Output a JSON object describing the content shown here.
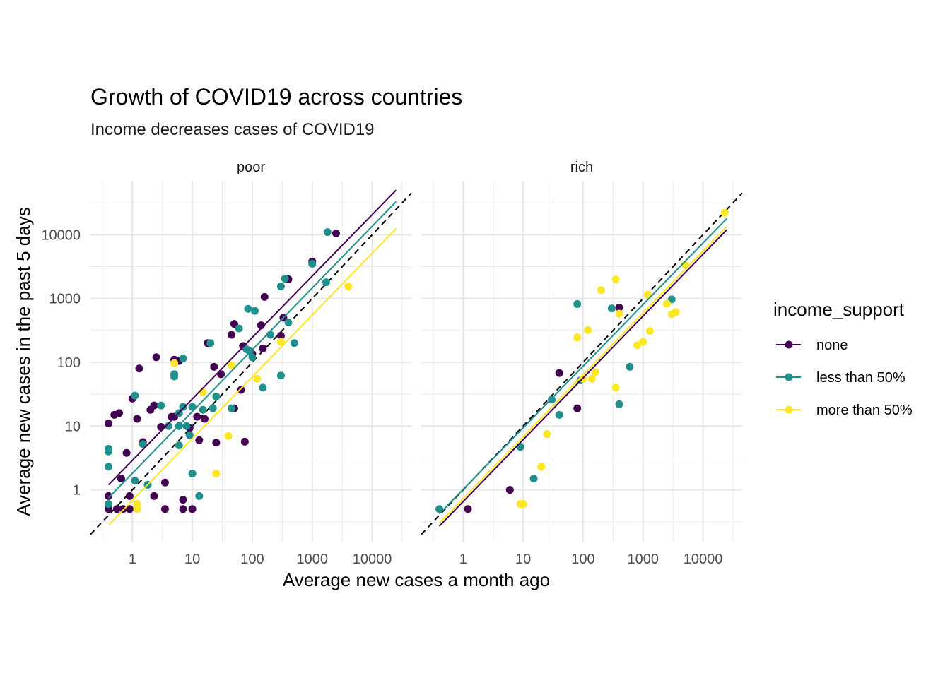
{
  "chart_data": {
    "type": "scatter",
    "title": "Growth of COVID19 across countries",
    "subtitle": "Income decreases cases of COVID19",
    "xlabel": "Average new cases a month ago",
    "ylabel": "Average new cases in the past 5 days",
    "x_scale": "log10",
    "y_scale": "log10",
    "xlim": [
      0.2,
      45000
    ],
    "ylim": [
      0.15,
      70000
    ],
    "x_ticks": [
      1,
      10,
      100,
      1000,
      10000
    ],
    "x_tick_labels": [
      "1",
      "10",
      "100",
      "1000",
      "10000"
    ],
    "y_ticks": [
      1,
      10,
      100,
      1000,
      10000
    ],
    "y_tick_labels": [
      "1",
      "10",
      "100",
      "1000",
      "10000"
    ],
    "grid": true,
    "reference_line": "y = x (dashed)",
    "legend": {
      "title": "income_support",
      "position": "right",
      "entries": [
        {
          "name": "none",
          "color": "#440154"
        },
        {
          "name": "less than 50%",
          "color": "#21908C"
        },
        {
          "name": "more than 50%",
          "color": "#FDE725"
        }
      ]
    },
    "panels": [
      {
        "label": "poor",
        "fit_lines": [
          {
            "series": "none",
            "x": [
              0.4,
              25000
            ],
            "y": [
              1.2,
              50000
            ]
          },
          {
            "series": "less than 50%",
            "x": [
              0.4,
              25000
            ],
            "y": [
              0.75,
              33000
            ]
          },
          {
            "series": "more than 50%",
            "x": [
              0.4,
              25000
            ],
            "y": [
              0.28,
              12500
            ]
          }
        ],
        "series": [
          {
            "name": "none",
            "points": [
              [
                0.4,
                0.5
              ],
              [
                0.4,
                0.8
              ],
              [
                0.4,
                11
              ],
              [
                0.5,
                15
              ],
              [
                0.6,
                16
              ],
              [
                0.65,
                1.5
              ],
              [
                0.55,
                0.5
              ],
              [
                0.7,
                0.5
              ],
              [
                0.8,
                3.8
              ],
              [
                0.9,
                0.5
              ],
              [
                0.9,
                0.8
              ],
              [
                1,
                27
              ],
              [
                1.2,
                13
              ],
              [
                1.3,
                80
              ],
              [
                1.5,
                5.6
              ],
              [
                2,
                18
              ],
              [
                2.3,
                21
              ],
              [
                2.5,
                120
              ],
              [
                2.3,
                0.8
              ],
              [
                3,
                9.7
              ],
              [
                3.5,
                1.3
              ],
              [
                3.5,
                0.5
              ],
              [
                4.5,
                14
              ],
              [
                5,
                110
              ],
              [
                6,
                105
              ],
              [
                7,
                0.7
              ],
              [
                7,
                0.5
              ],
              [
                9,
                9.3
              ],
              [
                10,
                0.5
              ],
              [
                12,
                14
              ],
              [
                13,
                6
              ],
              [
                16,
                13
              ],
              [
                18,
                200
              ],
              [
                23,
                85
              ],
              [
                25,
                5.5
              ],
              [
                30,
                65
              ],
              [
                45,
                270
              ],
              [
                50,
                400
              ],
              [
                50,
                19
              ],
              [
                65,
                37
              ],
              [
                70,
                180
              ],
              [
                75,
                5.7
              ],
              [
                100,
                135
              ],
              [
                140,
                380
              ],
              [
                150,
                165
              ],
              [
                160,
                1060
              ],
              [
                300,
                260
              ],
              [
                330,
                500
              ],
              [
                400,
                2000
              ],
              [
                1000,
                3800
              ],
              [
                2500,
                10500
              ],
              [
                5,
                14
              ]
            ]
          },
          {
            "name": "less than 50%",
            "points": [
              [
                0.4,
                4.4
              ],
              [
                0.4,
                4
              ],
              [
                0.4,
                2.3
              ],
              [
                0.4,
                0.6
              ],
              [
                1.1,
                30
              ],
              [
                1.1,
                1.4
              ],
              [
                1.2,
                0.5
              ],
              [
                1.5,
                5.2
              ],
              [
                1.8,
                1.2
              ],
              [
                3,
                21
              ],
              [
                4,
                10
              ],
              [
                5,
                60
              ],
              [
                5,
                65
              ],
              [
                6,
                5
              ],
              [
                6,
                16
              ],
              [
                7,
                20
              ],
              [
                7,
                115
              ],
              [
                8,
                10
              ],
              [
                9,
                7.2
              ],
              [
                10,
                20
              ],
              [
                10,
                1.8
              ],
              [
                13,
                0.8
              ],
              [
                15,
                18
              ],
              [
                20,
                200
              ],
              [
                22,
                19
              ],
              [
                25,
                29
              ],
              [
                45,
                19
              ],
              [
                60,
                340
              ],
              [
                80,
                160
              ],
              [
                85,
                690
              ],
              [
                90,
                150
              ],
              [
                100,
                120
              ],
              [
                110,
                640
              ],
              [
                150,
                40
              ],
              [
                200,
                270
              ],
              [
                300,
                1550
              ],
              [
                350,
                2050
              ],
              [
                300,
                62
              ],
              [
                400,
                420
              ],
              [
                500,
                200
              ],
              [
                1000,
                3500
              ],
              [
                1800,
                11000
              ],
              [
                1700,
                1800
              ],
              [
                6,
                10
              ]
            ]
          },
          {
            "name": "more than 50%",
            "points": [
              [
                1.2,
                0.6
              ],
              [
                1.2,
                0.5
              ],
              [
                5,
                97
              ],
              [
                15,
                34
              ],
              [
                25,
                1.8
              ],
              [
                40,
                7
              ],
              [
                45,
                90
              ],
              [
                120,
                55
              ],
              [
                300,
                210
              ],
              [
                4000,
                1550
              ]
            ]
          }
        ]
      },
      {
        "label": "rich",
        "fit_lines": [
          {
            "series": "none",
            "x": [
              0.4,
              25000
            ],
            "y": [
              0.27,
              12000
            ]
          },
          {
            "series": "less than 50%",
            "x": [
              0.4,
              25000
            ],
            "y": [
              0.42,
              18000
            ]
          },
          {
            "series": "more than 50%",
            "x": [
              0.4,
              25000
            ],
            "y": [
              0.3,
              13500
            ]
          }
        ],
        "series": [
          {
            "name": "none",
            "points": [
              [
                1.2,
                0.5
              ],
              [
                6,
                1
              ],
              [
                40,
                68
              ],
              [
                80,
                19
              ],
              [
                400,
                720
              ]
            ]
          },
          {
            "name": "less than 50%",
            "points": [
              [
                0.4,
                0.5
              ],
              [
                9,
                4.7
              ],
              [
                15,
                1.5
              ],
              [
                30,
                26
              ],
              [
                40,
                15
              ],
              [
                80,
                820
              ],
              [
                90,
                52
              ],
              [
                300,
                700
              ],
              [
                400,
                22
              ],
              [
                600,
                85
              ],
              [
                3000,
                970
              ]
            ]
          },
          {
            "name": "more than 50%",
            "points": [
              [
                9,
                0.6
              ],
              [
                10,
                0.6
              ],
              [
                20,
                2.3
              ],
              [
                25,
                7.5
              ],
              [
                80,
                245
              ],
              [
                100,
                55
              ],
              [
                120,
                320
              ],
              [
                140,
                55
              ],
              [
                160,
                70
              ],
              [
                200,
                1350
              ],
              [
                350,
                2000
              ],
              [
                350,
                40
              ],
              [
                400,
                580
              ],
              [
                800,
                185
              ],
              [
                1000,
                210
              ],
              [
                1200,
                1150
              ],
              [
                1300,
                310
              ],
              [
                2500,
                830
              ],
              [
                3000,
                570
              ],
              [
                3500,
                610
              ],
              [
                5000,
                3400
              ],
              [
                23000,
                22000
              ]
            ]
          }
        ]
      }
    ]
  }
}
